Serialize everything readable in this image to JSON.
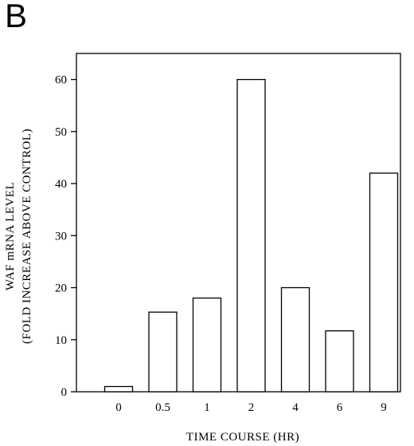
{
  "panel_label": "B",
  "chart_data": {
    "type": "bar",
    "categories": [
      "0",
      "0.5",
      "1",
      "2",
      "4",
      "6",
      "9"
    ],
    "values": [
      1,
      15.3,
      18,
      60,
      20,
      11.7,
      42
    ],
    "xlabel": "TIME COURSE (HR)",
    "ylabel_lines": [
      "WAF mRNA LEVEL",
      "(FOLD INCREASE ABOVE CONTROL)"
    ],
    "ylim": [
      0,
      65
    ],
    "yticks": [
      0,
      10,
      20,
      30,
      40,
      50,
      60
    ],
    "grid": false,
    "legend": "none"
  }
}
